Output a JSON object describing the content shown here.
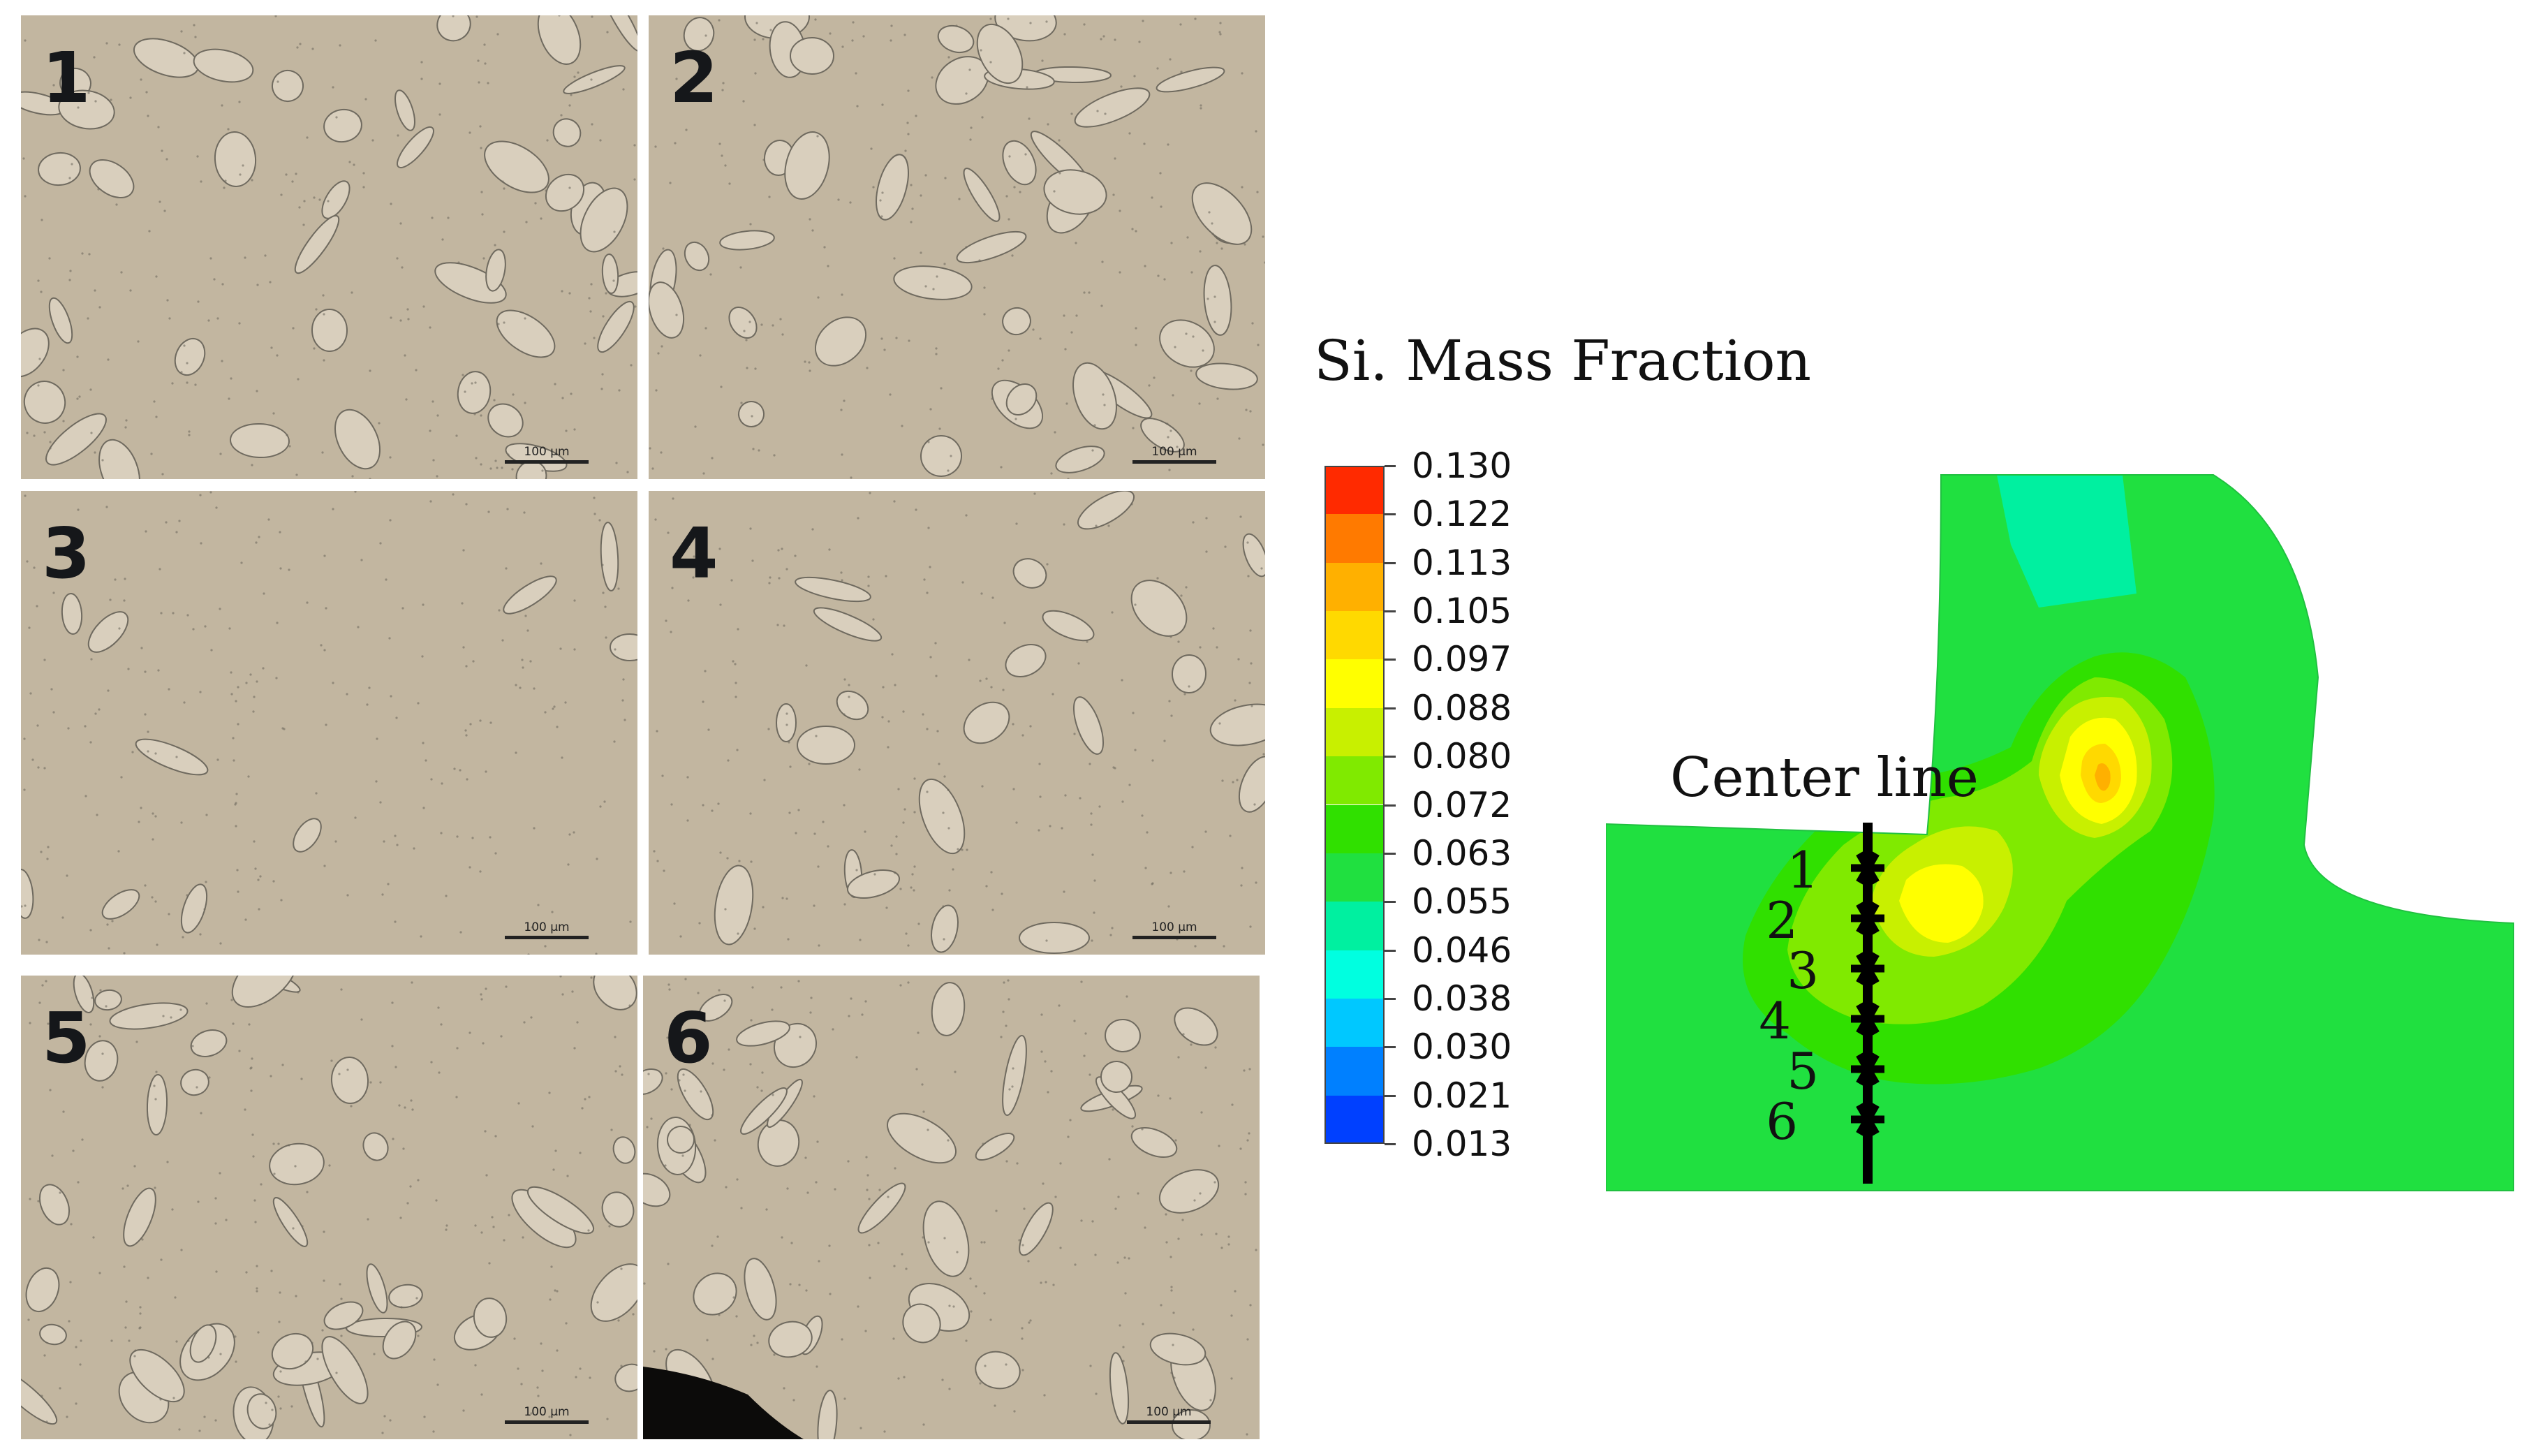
{
  "micrographs": {
    "panels": [
      {
        "label": "1",
        "scale": "100 μm"
      },
      {
        "label": "2",
        "scale": "100 μm"
      },
      {
        "label": "3",
        "scale": "100 μm"
      },
      {
        "label": "4",
        "scale": "100 μm"
      },
      {
        "label": "5",
        "scale": "100 μm"
      },
      {
        "label": "6",
        "scale": "100 μm"
      }
    ],
    "colors": {
      "matrix": "#c2b6a0",
      "dendrite": "#d9cfbd",
      "boundary": "#6f6a5f"
    }
  },
  "legend": {
    "title": "Si. Mass Fraction",
    "values": [
      "0.130",
      "0.122",
      "0.113",
      "0.105",
      "0.097",
      "0.088",
      "0.080",
      "0.072",
      "0.063",
      "0.055",
      "0.046",
      "0.038",
      "0.030",
      "0.021",
      "0.013"
    ],
    "colors": [
      "#ff2a00",
      "#ff7a00",
      "#ffb000",
      "#ffd900",
      "#ffff00",
      "#c8f000",
      "#80ea00",
      "#30e000",
      "#20e040",
      "#00f0a0",
      "#00ffe0",
      "#00c8ff",
      "#0080ff",
      "#0040ff",
      "#0000ff"
    ]
  },
  "contour": {
    "center_line_label": "Center line",
    "points": [
      "1",
      "2",
      "3",
      "4",
      "5",
      "6"
    ]
  }
}
